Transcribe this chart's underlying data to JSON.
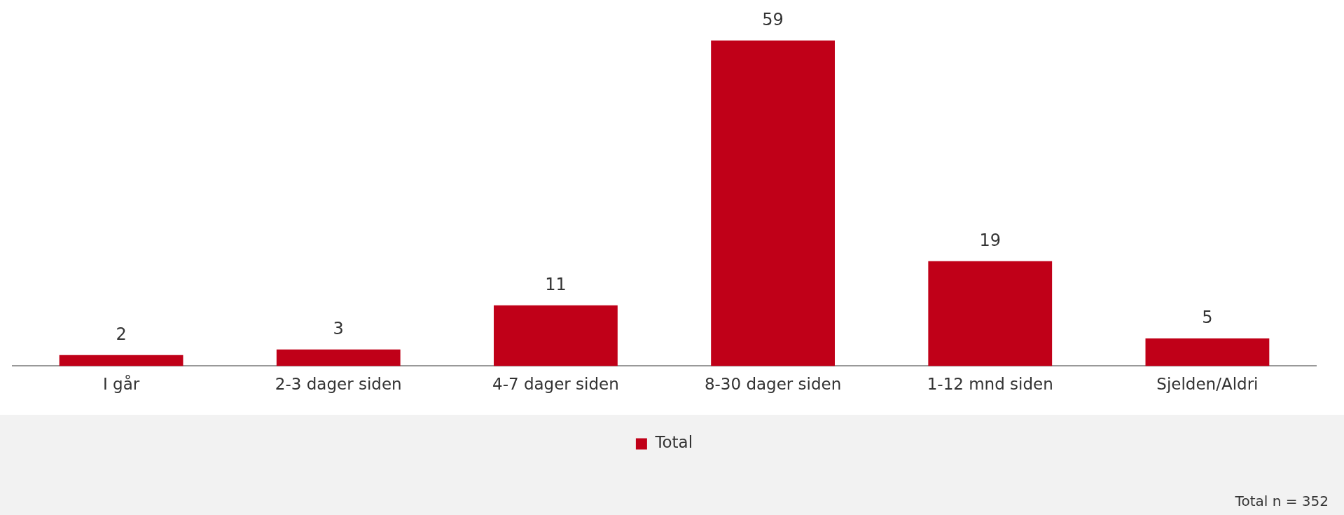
{
  "chart_data": {
    "type": "bar",
    "categories": [
      "I går",
      "2-3 dager siden",
      "4-7 dager siden",
      "8-30 dager siden",
      "1-12 mnd siden",
      "Sjelden/Aldri"
    ],
    "series": [
      {
        "name": "Total",
        "color": "#c00018",
        "values": [
          2,
          3,
          11,
          59,
          19,
          5
        ]
      }
    ],
    "data_labels": true,
    "legend": "bottom",
    "grid": false,
    "annotations": [
      "Total n = 352"
    ]
  }
}
